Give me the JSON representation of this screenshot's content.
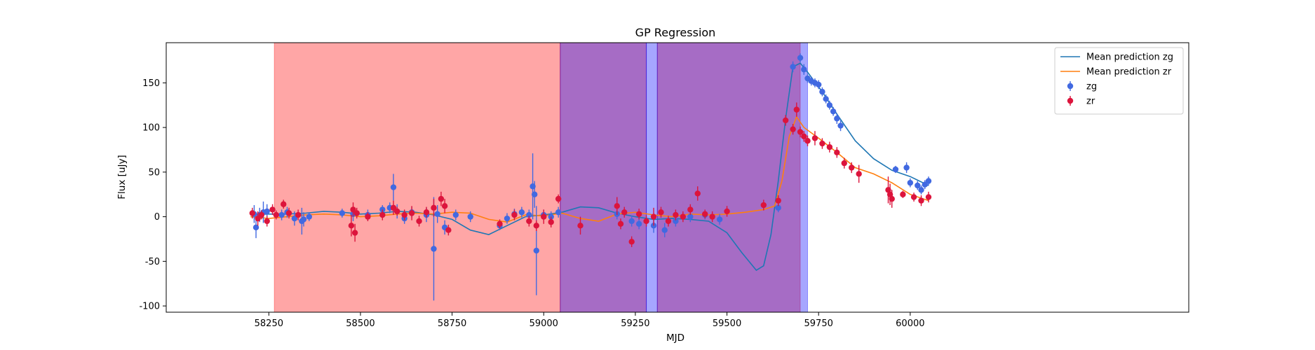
{
  "chart_data": {
    "type": "scatter",
    "title": "GP Regression",
    "xlabel": "MJD",
    "ylabel": "Flux [uJy]",
    "xlim": [
      57970,
      60760
    ],
    "ylim": [
      -107,
      195
    ],
    "xticks": [
      58250,
      58500,
      58750,
      59000,
      59250,
      59500,
      59750,
      60000
    ],
    "yticks": [
      -100,
      -50,
      0,
      50,
      100,
      150
    ],
    "grid": false,
    "legend_position": "top-right",
    "legend": [
      {
        "label": "Mean prediction zg",
        "kind": "line",
        "color": "#1f77b4"
      },
      {
        "label": "Mean prediction zr",
        "kind": "line",
        "color": "#ff7f0e"
      },
      {
        "label": "zg",
        "kind": "errorbar-marker",
        "color": "#4169e1"
      },
      {
        "label": "zr",
        "kind": "errorbar-marker",
        "color": "#dc143c"
      }
    ],
    "shaded_regions": [
      {
        "x0": 58265,
        "x1": 59045,
        "color": "#ff0000",
        "alpha": 0.35
      },
      {
        "x0": 59045,
        "x1": 59280,
        "color": "#ff0000",
        "alpha": 0.35
      },
      {
        "x0": 59045,
        "x1": 59280,
        "color": "#0000ff",
        "alpha": 0.35
      },
      {
        "x0": 59280,
        "x1": 59310,
        "color": "#0000ff",
        "alpha": 0.35
      },
      {
        "x0": 59310,
        "x1": 59700,
        "color": "#ff0000",
        "alpha": 0.35
      },
      {
        "x0": 59310,
        "x1": 59720,
        "color": "#0000ff",
        "alpha": 0.35
      }
    ],
    "series": [
      {
        "name": "Mean prediction zg",
        "kind": "line",
        "color": "#1f77b4",
        "x": [
          58200,
          58250,
          58300,
          58350,
          58400,
          58450,
          58500,
          58550,
          58600,
          58650,
          58700,
          58750,
          58800,
          58850,
          58900,
          58950,
          59000,
          59050,
          59100,
          59150,
          59200,
          59250,
          59300,
          59350,
          59400,
          59450,
          59500,
          59540,
          59580,
          59600,
          59620,
          59640,
          59660,
          59680,
          59700,
          59720,
          59760,
          59800,
          59850,
          59900,
          59950,
          60000,
          60050
        ],
        "y": [
          2,
          3,
          3,
          4,
          6,
          5,
          3,
          4,
          6,
          5,
          2,
          -3,
          -15,
          -20,
          -10,
          0,
          2,
          5,
          11,
          10,
          4,
          0,
          -3,
          -2,
          -3,
          -5,
          -18,
          -40,
          -60,
          -55,
          -20,
          40,
          110,
          168,
          172,
          162,
          140,
          115,
          85,
          65,
          52,
          45,
          35
        ]
      },
      {
        "name": "Mean prediction zr",
        "kind": "line",
        "color": "#ff7f0e",
        "x": [
          58200,
          58250,
          58300,
          58350,
          58400,
          58450,
          58500,
          58550,
          58600,
          58650,
          58700,
          58750,
          58800,
          58850,
          58900,
          58950,
          59000,
          59050,
          59100,
          59150,
          59200,
          59250,
          59300,
          59350,
          59400,
          59450,
          59500,
          59550,
          59600,
          59630,
          59650,
          59670,
          59690,
          59710,
          59750,
          59800,
          59850,
          59900,
          59950,
          60000,
          60050
        ],
        "y": [
          0,
          -2,
          0,
          2,
          3,
          2,
          0,
          1,
          3,
          4,
          3,
          5,
          4,
          -3,
          -6,
          2,
          1,
          4,
          -2,
          -5,
          3,
          5,
          2,
          0,
          3,
          2,
          3,
          5,
          8,
          12,
          40,
          90,
          112,
          100,
          88,
          72,
          55,
          48,
          38,
          25,
          18
        ]
      },
      {
        "name": "zg",
        "kind": "errorbar",
        "color": "#4169e1",
        "x": [
          58210,
          58215,
          58225,
          58235,
          58245,
          58285,
          58300,
          58320,
          58340,
          58345,
          58360,
          58450,
          58480,
          58520,
          58560,
          58580,
          58590,
          58600,
          58620,
          58640,
          58680,
          58700,
          58710,
          58730,
          58760,
          58800,
          58880,
          58900,
          58920,
          58940,
          58960,
          58970,
          58975,
          58980,
          59000,
          59020,
          59040,
          59200,
          59240,
          59260,
          59300,
          59330,
          59360,
          59400,
          59440,
          59480,
          59640,
          59680,
          59700,
          59710,
          59720,
          59730,
          59740,
          59750,
          59760,
          59770,
          59780,
          59790,
          59800,
          59810,
          59960,
          59990,
          60000,
          60020,
          60030,
          60040,
          60050
        ],
        "y": [
          3,
          -12,
          2,
          5,
          6,
          2,
          5,
          -2,
          -5,
          -3,
          0,
          4,
          3,
          2,
          8,
          10,
          33,
          6,
          -2,
          5,
          2,
          -36,
          3,
          -12,
          2,
          0,
          -10,
          -2,
          3,
          5,
          2,
          34,
          25,
          -38,
          2,
          0,
          5,
          3,
          -5,
          -8,
          -10,
          -15,
          -5,
          0,
          2,
          -3,
          10,
          168,
          178,
          165,
          155,
          152,
          150,
          148,
          140,
          132,
          125,
          118,
          110,
          102,
          53,
          55,
          38,
          35,
          30,
          36,
          40
        ],
        "err": [
          10,
          12,
          8,
          12,
          8,
          6,
          6,
          8,
          15,
          8,
          5,
          5,
          8,
          6,
          5,
          6,
          15,
          8,
          6,
          6,
          8,
          58,
          10,
          8,
          6,
          6,
          5,
          6,
          6,
          6,
          6,
          37,
          15,
          50,
          6,
          6,
          6,
          6,
          6,
          6,
          8,
          8,
          6,
          6,
          5,
          6,
          5,
          6,
          5,
          6,
          5,
          5,
          5,
          5,
          5,
          5,
          5,
          5,
          6,
          6,
          4,
          6,
          5,
          5,
          5,
          5,
          5
        ]
      },
      {
        "name": "zr",
        "kind": "errorbar",
        "color": "#dc143c",
        "x": [
          58205,
          58220,
          58230,
          58245,
          58260,
          58270,
          58290,
          58305,
          58330,
          58475,
          58480,
          58485,
          58490,
          58520,
          58560,
          58590,
          58600,
          58620,
          58640,
          58660,
          58680,
          58700,
          58720,
          58730,
          58740,
          58880,
          58920,
          58960,
          58980,
          59000,
          59020,
          59040,
          59100,
          59200,
          59210,
          59220,
          59240,
          59260,
          59280,
          59300,
          59320,
          59340,
          59360,
          59380,
          59400,
          59420,
          59440,
          59460,
          59500,
          59600,
          59640,
          59660,
          59680,
          59690,
          59700,
          59710,
          59720,
          59740,
          59760,
          59780,
          59800,
          59820,
          59840,
          59860,
          59940,
          59945,
          59950,
          59980,
          60010,
          60030,
          60050
        ],
        "y": [
          4,
          -2,
          2,
          -5,
          8,
          2,
          14,
          4,
          2,
          -10,
          8,
          -18,
          4,
          0,
          2,
          10,
          6,
          2,
          4,
          -5,
          5,
          10,
          20,
          12,
          -15,
          -8,
          2,
          -5,
          -10,
          0,
          -6,
          20,
          -10,
          12,
          -8,
          5,
          -28,
          3,
          -5,
          0,
          5,
          -5,
          2,
          0,
          8,
          26,
          3,
          0,
          6,
          13,
          18,
          108,
          98,
          120,
          95,
          90,
          85,
          88,
          82,
          78,
          72,
          60,
          55,
          48,
          30,
          25,
          20,
          25,
          22,
          18,
          22
        ],
        "err": [
          6,
          8,
          5,
          6,
          6,
          5,
          5,
          6,
          6,
          12,
          8,
          10,
          6,
          5,
          6,
          8,
          5,
          6,
          8,
          6,
          6,
          10,
          8,
          8,
          6,
          5,
          6,
          6,
          6,
          8,
          6,
          5,
          10,
          10,
          6,
          6,
          6,
          6,
          6,
          10,
          6,
          6,
          6,
          6,
          6,
          8,
          5,
          6,
          6,
          6,
          6,
          6,
          6,
          8,
          6,
          6,
          6,
          8,
          6,
          6,
          6,
          6,
          6,
          10,
          15,
          12,
          10,
          4,
          5,
          6,
          6
        ]
      }
    ]
  }
}
